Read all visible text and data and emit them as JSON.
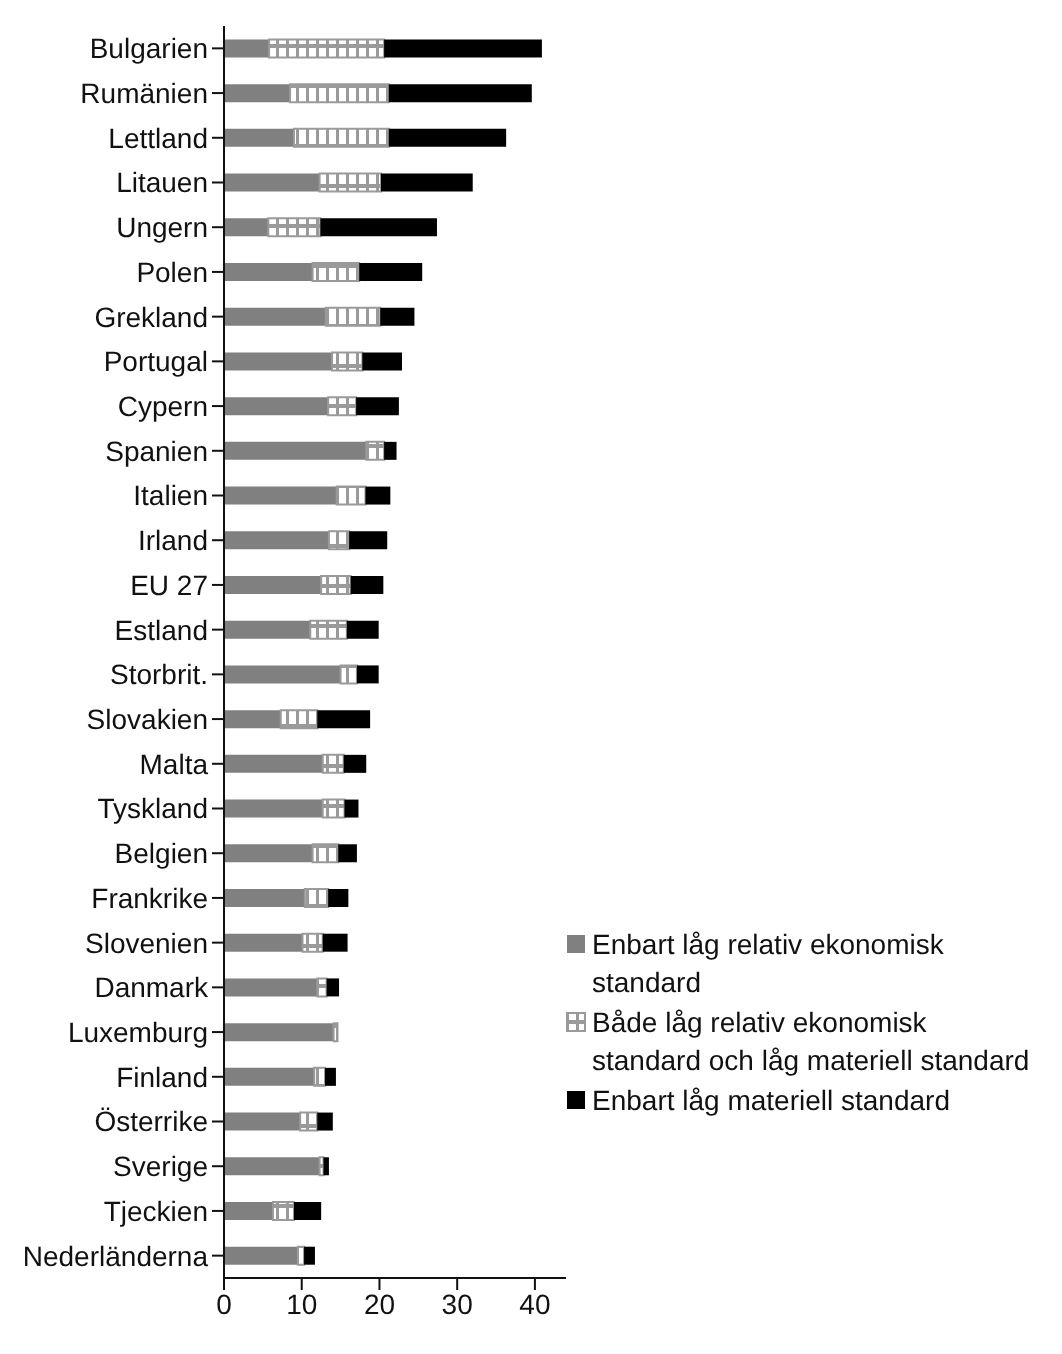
{
  "chart_data": {
    "type": "bar",
    "orientation": "horizontal",
    "stacked": true,
    "categories": [
      "Bulgarien",
      "Rumänien",
      "Lettland",
      "Litauen",
      "Ungern",
      "Polen",
      "Grekland",
      "Portugal",
      "Cypern",
      "Spanien",
      "Italien",
      "Irland",
      "EU 27",
      "Estland",
      "Storbrit.",
      "Slovakien",
      "Malta",
      "Tyskland",
      "Belgien",
      "Frankrike",
      "Slovenien",
      "Danmark",
      "Luxemburg",
      "Finland",
      "Österrike",
      "Sverige",
      "Tjeckien",
      "Nederländerna"
    ],
    "series": [
      {
        "name": "Enbart låg relativ ekonomisk standard",
        "color": "#808080",
        "values": [
          5.8,
          8.5,
          9.0,
          12.3,
          5.7,
          11.4,
          13.1,
          13.9,
          13.4,
          18.3,
          14.5,
          13.5,
          12.5,
          11.1,
          15.0,
          7.3,
          12.7,
          12.7,
          11.4,
          10.4,
          10.1,
          12.0,
          14.1,
          11.6,
          9.8,
          12.3,
          6.3,
          9.5
        ]
      },
      {
        "name": "Både låg relativ ekonomisk standard och låg materiell standard",
        "color": "#9a9a9a",
        "values": [
          14.8,
          12.7,
          12.2,
          7.9,
          6.7,
          6.0,
          7.0,
          3.9,
          3.6,
          2.3,
          3.7,
          2.6,
          3.8,
          4.7,
          2.1,
          4.7,
          2.7,
          2.8,
          3.3,
          3.0,
          2.6,
          1.2,
          0.5,
          1.4,
          2.2,
          0.5,
          2.7,
          0.8
        ]
      },
      {
        "name": "Enbart låg materiell standard",
        "color": "#000000",
        "values": [
          20.3,
          18.4,
          15.1,
          11.8,
          15.0,
          8.1,
          4.4,
          5.1,
          5.5,
          1.6,
          3.2,
          4.9,
          4.2,
          4.1,
          2.8,
          6.8,
          2.9,
          1.8,
          2.4,
          2.6,
          3.2,
          1.6,
          0,
          1.4,
          2.0,
          0.7,
          3.5,
          1.4
        ]
      }
    ],
    "xlim": [
      0,
      44
    ],
    "xticks": [
      0,
      10,
      20,
      30,
      40
    ],
    "grid": false,
    "legend": "right"
  }
}
